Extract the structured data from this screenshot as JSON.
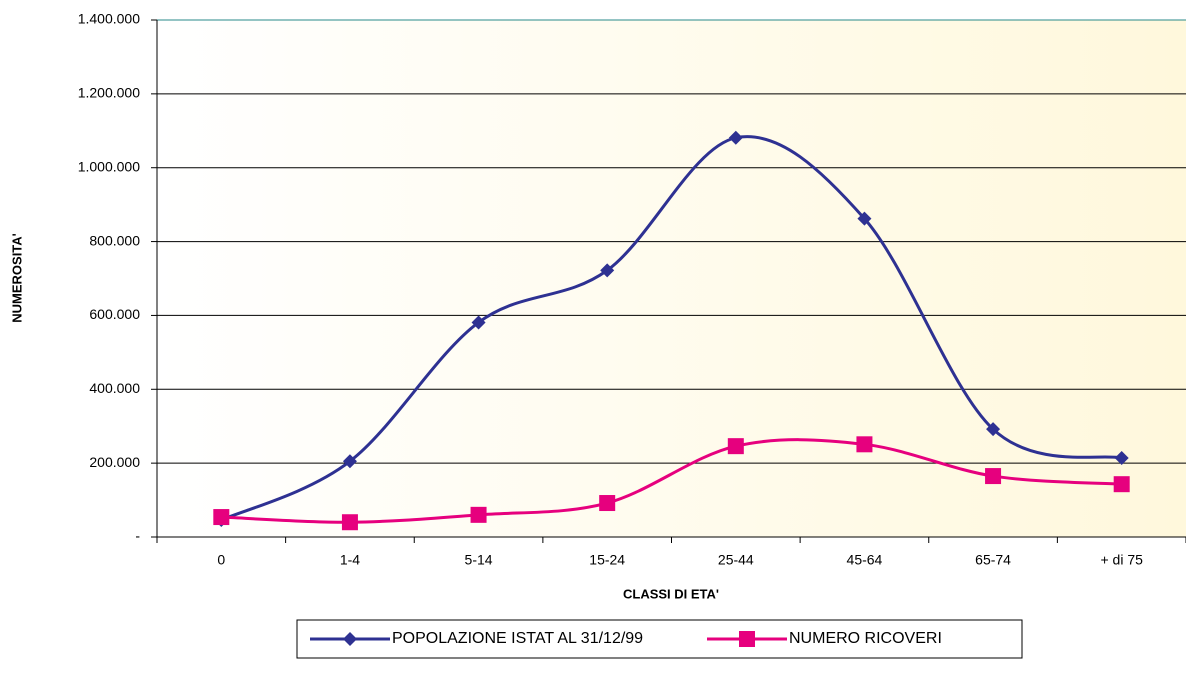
{
  "chart_data": {
    "type": "line",
    "categories": [
      "0",
      "1-4",
      "5-14",
      "15-24",
      "25-44",
      "45-64",
      "65-74",
      "+ di 75"
    ],
    "series": [
      {
        "name": "POPOLAZIONE ISTAT AL 31/12/99",
        "color": "#2e3192",
        "marker": "diamond",
        "values": [
          46000,
          205000,
          581000,
          722000,
          1081000,
          862000,
          292000,
          214000
        ]
      },
      {
        "name": "NUMERO RICOVERI",
        "color": "#e6007e",
        "marker": "square",
        "values": [
          54000,
          40000,
          60000,
          92000,
          246000,
          251000,
          165000,
          143000
        ]
      }
    ],
    "ylim": [
      0,
      1400000
    ],
    "yticks": [
      {
        "value": 0,
        "label": "-"
      },
      {
        "value": 200000,
        "label": "200.000"
      },
      {
        "value": 400000,
        "label": "400.000"
      },
      {
        "value": 600000,
        "label": "600.000"
      },
      {
        "value": 800000,
        "label": "800.000"
      },
      {
        "value": 1000000,
        "label": "1.000.000"
      },
      {
        "value": 1200000,
        "label": "1.200.000"
      },
      {
        "value": 1400000,
        "label": "1.400.000"
      }
    ],
    "xlabel": "CLASSI DI ETA'",
    "ylabel": "NUMEROSITA'",
    "grid": true,
    "legend": "bottom"
  }
}
